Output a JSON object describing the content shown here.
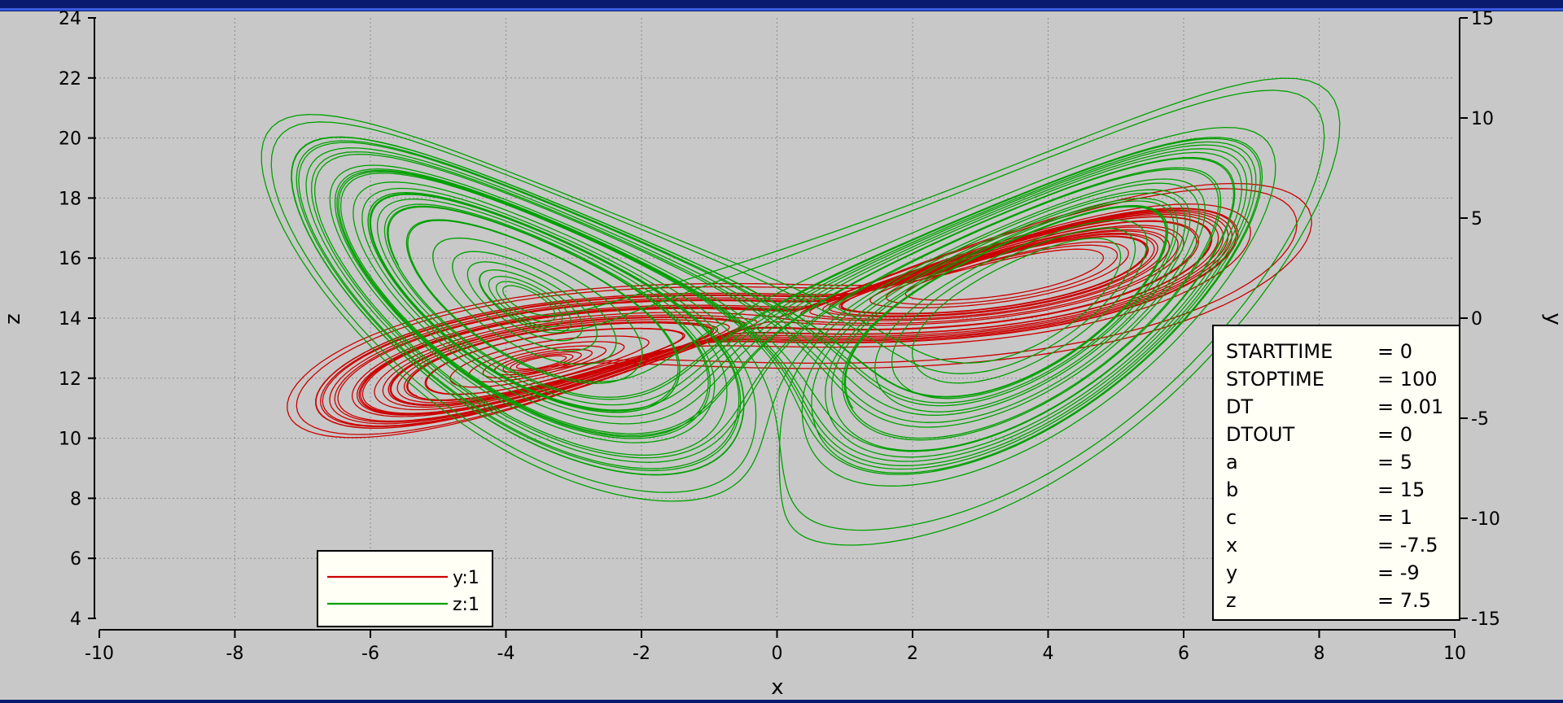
{
  "colors": {
    "background": "#c8c8c8",
    "frame": "#0a1a6e",
    "grid": "#8c8c8c",
    "series_y": "#cc0000",
    "series_z": "#00a000"
  },
  "chart_data": {
    "type": "line",
    "title": "",
    "xlabel": "x",
    "ylabel_left": "z",
    "ylabel_right": "y",
    "xlim": [
      -10,
      10
    ],
    "ylim_left": [
      4,
      24
    ],
    "ylim_right": [
      -15,
      15
    ],
    "x_ticks": [
      "-10",
      "-8",
      "-6",
      "-4",
      "-2",
      "0",
      "2",
      "4",
      "6",
      "8",
      "10"
    ],
    "left_ticks": [
      "4",
      "6",
      "8",
      "10",
      "12",
      "14",
      "16",
      "18",
      "20",
      "22",
      "24"
    ],
    "right_ticks": [
      "-15",
      "-10",
      "-5",
      "0",
      "5",
      "10",
      "15"
    ],
    "grid": true,
    "legend_position": "bottom-left",
    "series": [
      {
        "name": "y:1",
        "axis": "right",
        "color": "#cc0000",
        "description": "y vs x trajectory, chaotic double loop"
      },
      {
        "name": "z:1",
        "axis": "left",
        "color": "#00a000",
        "description": "z vs x trajectory, butterfly attractor"
      }
    ],
    "parameters": [
      {
        "name": "STARTTIME",
        "value": "= 0"
      },
      {
        "name": "STOPTIME",
        "value": "= 100"
      },
      {
        "name": "DT",
        "value": "= 0.01"
      },
      {
        "name": "DTOUT",
        "value": "= 0"
      },
      {
        "name": "a",
        "value": "= 5"
      },
      {
        "name": "b",
        "value": "= 15"
      },
      {
        "name": "c",
        "value": "= 1"
      },
      {
        "name": "x",
        "value": "= -7.5"
      },
      {
        "name": "y",
        "value": "= -9"
      },
      {
        "name": "z",
        "value": "= 7.5"
      }
    ]
  }
}
